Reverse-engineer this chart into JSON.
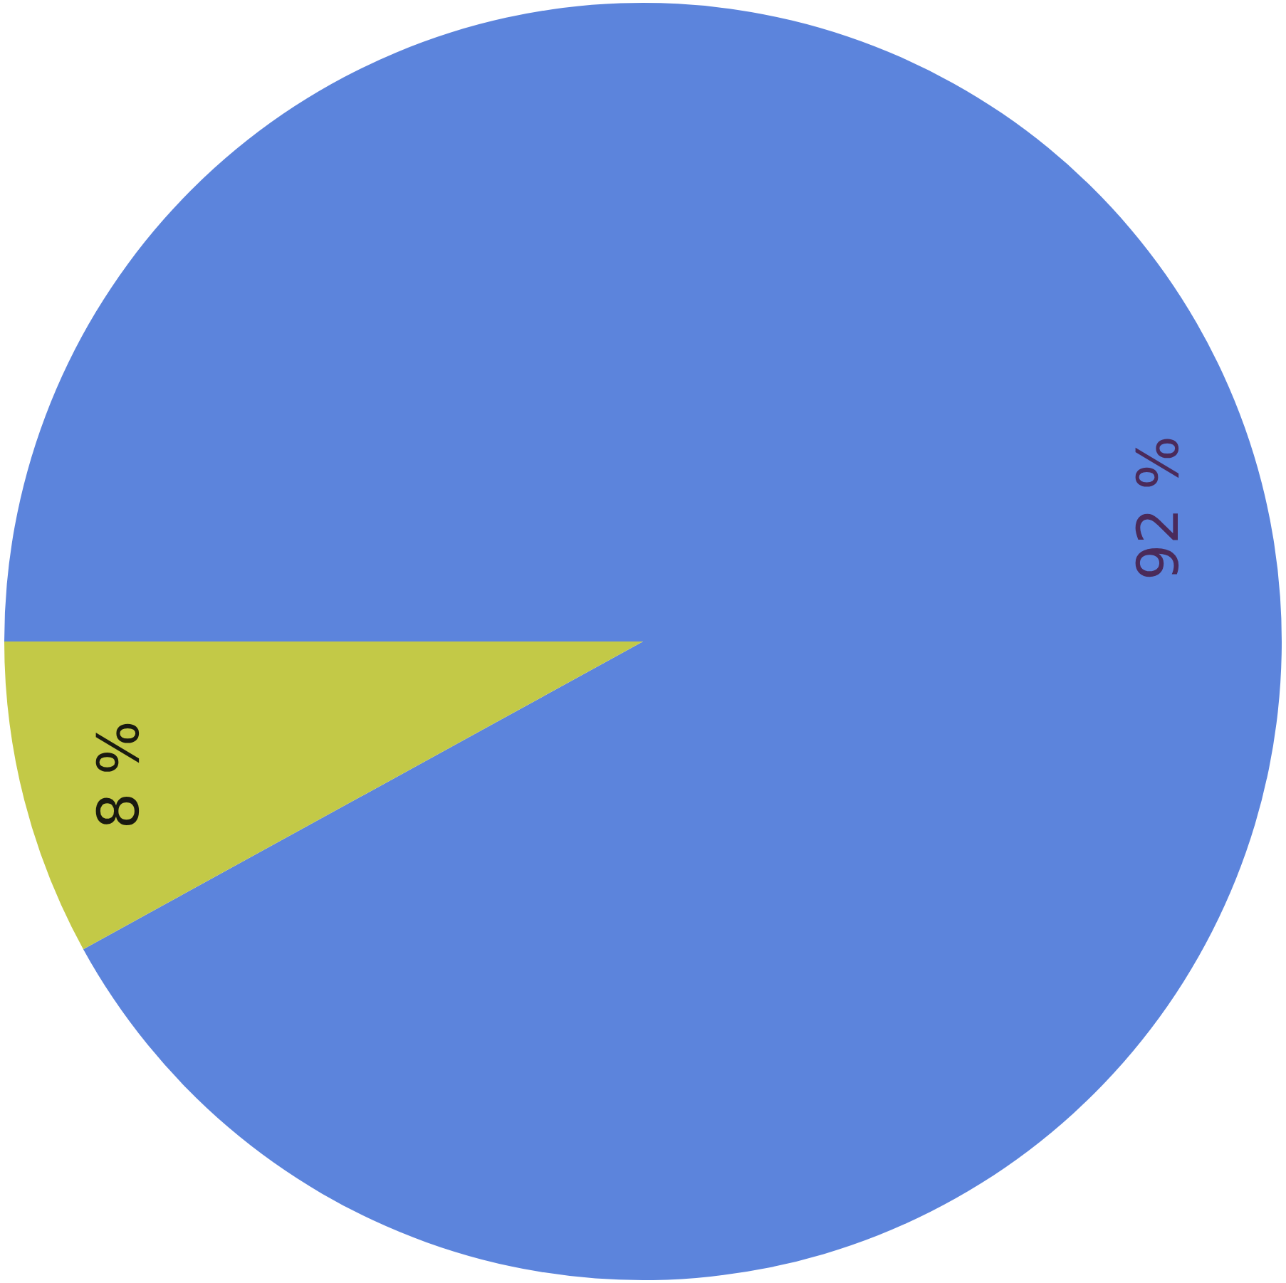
{
  "chart_data": {
    "type": "pie",
    "categories": [
      null,
      null
    ],
    "values": [
      92,
      8
    ],
    "colors": [
      "#5c84dc",
      "#c3c947"
    ],
    "value_labels": [
      "92 %",
      "8 %"
    ]
  }
}
